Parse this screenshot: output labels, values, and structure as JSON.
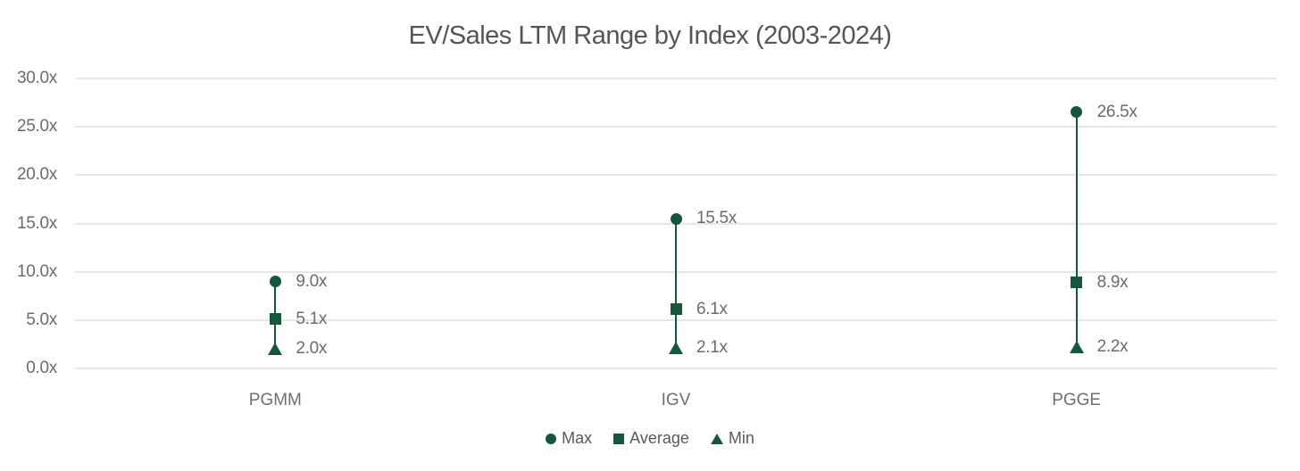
{
  "title": "EV/Sales LTM Range by Index (2003-2024)",
  "chart_data": {
    "type": "scatter",
    "subtype": "range-dot-plot",
    "title": "EV/Sales LTM Range by Index (2003-2024)",
    "categories": [
      "PGMM",
      "IGV",
      "PGGE"
    ],
    "series": [
      {
        "name": "Max",
        "marker": "circle",
        "values": [
          9.0,
          15.5,
          26.5
        ],
        "labels": [
          "9.0x",
          "15.5x",
          "26.5x"
        ]
      },
      {
        "name": "Average",
        "marker": "square",
        "values": [
          5.1,
          6.1,
          8.9
        ],
        "labels": [
          "5.1x",
          "6.1x",
          "8.9x"
        ]
      },
      {
        "name": "Min",
        "marker": "triangle",
        "values": [
          2.0,
          2.1,
          2.2
        ],
        "labels": [
          "2.0x",
          "2.1x",
          "2.2x"
        ]
      }
    ],
    "xlabel": "",
    "ylabel": "",
    "ylim": [
      0,
      30
    ],
    "ytick_values": [
      0,
      5,
      10,
      15,
      20,
      25,
      30
    ],
    "ytick_labels": [
      "0.0x",
      "5.0x",
      "10.0x",
      "15.0x",
      "20.0x",
      "25.0x",
      "30.0x"
    ],
    "grid": true,
    "legend_position": "bottom",
    "legend": [
      {
        "name": "Max",
        "marker": "circle"
      },
      {
        "name": "Average",
        "marker": "square"
      },
      {
        "name": "Min",
        "marker": "triangle"
      }
    ],
    "colors": {
      "accent_green": "#15573c",
      "gridline": "#e3e3e3",
      "title_text": "#555555",
      "tick_text": "#6b6b6b",
      "category_text": "#6f6f6f",
      "legend_text": "#595959",
      "background": "#ffffff"
    }
  }
}
